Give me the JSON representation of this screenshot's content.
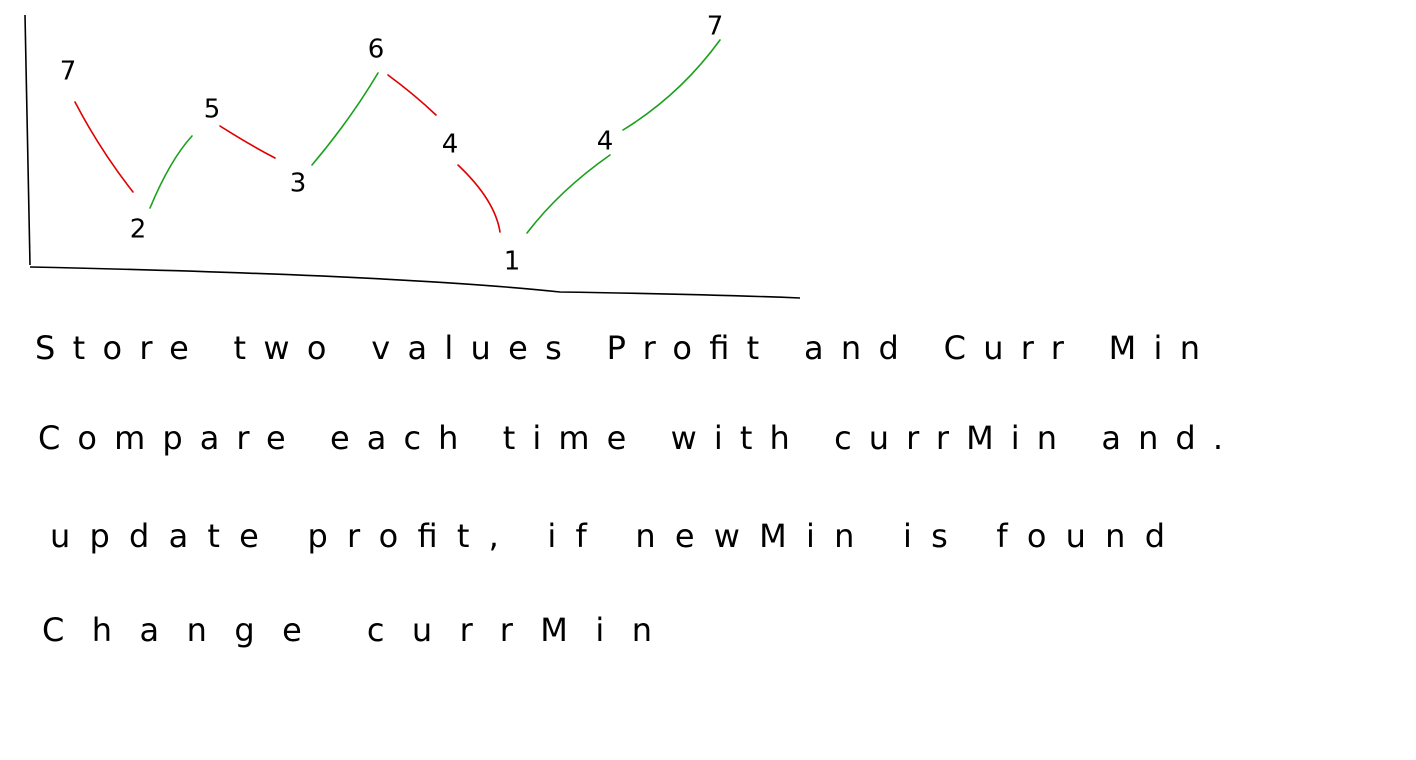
{
  "nodes": [
    {
      "label": "7"
    },
    {
      "label": "2"
    },
    {
      "label": "5"
    },
    {
      "label": "3"
    },
    {
      "label": "6"
    },
    {
      "label": "4"
    },
    {
      "label": "1"
    },
    {
      "label": "4"
    },
    {
      "label": "7"
    }
  ],
  "notes": [
    "Store two values Profit and Curr Min",
    "Compare each time with currMin and.",
    "update profit, if newMin is found",
    "Change currMin"
  ]
}
